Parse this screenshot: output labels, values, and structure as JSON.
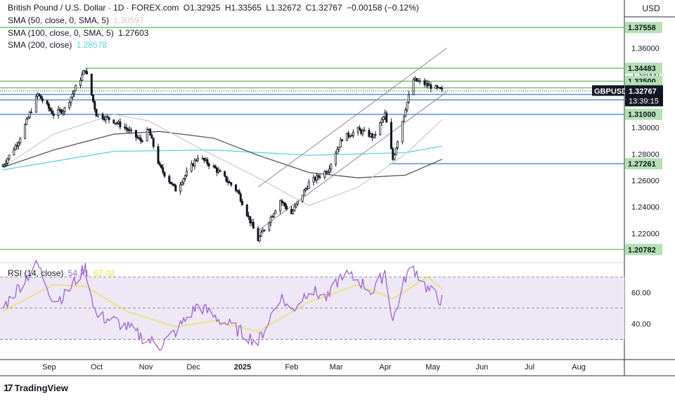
{
  "header": {
    "symbol": "British Pound / U.S. Dollar · 1D · FOREX.com",
    "open": "O1.32925",
    "high": "H1.33565",
    "low": "L1.32672",
    "close": "C1.32767",
    "change": "−0.00158 (−0.12%)"
  },
  "legends": {
    "sma50": {
      "label": "SMA (50, close, 0, SMA, 5)",
      "value": "1.30597",
      "color": "#c9c9c9"
    },
    "sma100": {
      "label": "SMA (100, close, 0, SMA, 5)",
      "value": "1.27603",
      "color": "#555555"
    },
    "sma200": {
      "label": "SMA (200, close)",
      "value": "1.28578",
      "color": "#55d3e6"
    },
    "rsi": {
      "label": "RSI (14, close)",
      "value": "54.71",
      "ma_value": "62.02",
      "color": "#9b59d0",
      "ma_color": "#e8e13a"
    }
  },
  "currency": "USD",
  "brand": {
    "logo": "17",
    "name": "TradingView"
  },
  "colors": {
    "up": "#131722",
    "down": "#131722",
    "green_level": "#7ac17a",
    "blue_level": "#5b8fd8",
    "rsi_fill": "#ede7f6",
    "axis_text": "#131722"
  },
  "chart_data": [
    {
      "type": "candlestick",
      "title": "British Pound / U.S. Dollar · 1D · FOREX.com",
      "x_tick_labels": [
        "Sep",
        "Oct",
        "Nov",
        "Dec",
        "2025",
        "Feb",
        "Mar",
        "Apr",
        "May",
        "Jun",
        "Jul",
        "Aug"
      ],
      "y_tick_labels": [
        "1.36000",
        "1.34000",
        "1.32000",
        "1.30000",
        "1.28000",
        "1.26000",
        "1.24000",
        "1.22000"
      ],
      "ylim": [
        1.2,
        1.39
      ],
      "last_price": {
        "label": "GBPUSD",
        "value": "1.32767",
        "countdown": "13:39:15"
      },
      "price_path": [
        [
          "2024-08-05",
          1.271
        ],
        [
          "2024-08-15",
          1.29
        ],
        [
          "2024-08-27",
          1.325
        ],
        [
          "2024-09-06",
          1.31
        ],
        [
          "2024-09-13",
          1.314
        ],
        [
          "2024-09-26",
          1.344
        ],
        [
          "2024-10-03",
          1.31
        ],
        [
          "2024-10-14",
          1.305
        ],
        [
          "2024-10-22",
          1.299
        ],
        [
          "2024-10-31",
          1.29
        ],
        [
          "2024-11-05",
          1.298
        ],
        [
          "2024-11-12",
          1.27
        ],
        [
          "2024-11-22",
          1.253
        ],
        [
          "2024-12-06",
          1.278
        ],
        [
          "2024-12-16",
          1.27
        ],
        [
          "2024-12-31",
          1.252
        ],
        [
          "2025-01-13",
          1.215
        ],
        [
          "2025-01-27",
          1.245
        ],
        [
          "2025-02-03",
          1.235
        ],
        [
          "2025-02-14",
          1.258
        ],
        [
          "2025-02-26",
          1.268
        ],
        [
          "2025-03-07",
          1.292
        ],
        [
          "2025-03-17",
          1.298
        ],
        [
          "2025-03-27",
          1.293
        ],
        [
          "2025-04-03",
          1.31
        ],
        [
          "2025-04-08",
          1.276
        ],
        [
          "2025-04-16",
          1.315
        ],
        [
          "2025-04-21",
          1.336
        ],
        [
          "2025-04-30",
          1.332
        ],
        [
          "2025-05-09",
          1.3277
        ]
      ],
      "sma50_path": [
        [
          "2024-08-05",
          1.27
        ],
        [
          "2024-09-06",
          1.295
        ],
        [
          "2024-10-14",
          1.31
        ],
        [
          "2024-11-05",
          1.305
        ],
        [
          "2024-12-06",
          1.285
        ],
        [
          "2025-01-13",
          1.262
        ],
        [
          "2025-02-14",
          1.241
        ],
        [
          "2025-03-17",
          1.255
        ],
        [
          "2025-04-16",
          1.28
        ],
        [
          "2025-05-09",
          1.306
        ]
      ],
      "sma100_path": [
        [
          "2024-08-05",
          1.27
        ],
        [
          "2024-09-06",
          1.283
        ],
        [
          "2024-10-14",
          1.295
        ],
        [
          "2024-11-12",
          1.297
        ],
        [
          "2024-12-16",
          1.292
        ],
        [
          "2025-01-13",
          1.279
        ],
        [
          "2025-02-14",
          1.266
        ],
        [
          "2025-03-17",
          1.262
        ],
        [
          "2025-04-16",
          1.264
        ],
        [
          "2025-05-09",
          1.276
        ]
      ],
      "sma200_path": [
        [
          "2024-08-05",
          1.268
        ],
        [
          "2024-10-14",
          1.282
        ],
        [
          "2024-12-16",
          1.283
        ],
        [
          "2025-02-14",
          1.279
        ],
        [
          "2025-04-16",
          1.281
        ],
        [
          "2025-05-09",
          1.286
        ]
      ],
      "horizontal_levels": [
        {
          "label": "1.37558",
          "value": 1.37558,
          "color": "#7ac17a"
        },
        {
          "label": "1.34483",
          "value": 1.34483,
          "color": "#7ac17a"
        },
        {
          "label": "1.33500",
          "value": 1.335,
          "color": "#7ac17a"
        },
        {
          "label": "1.33000",
          "value": 1.33,
          "color": "#7ac17a"
        },
        {
          "label": "1.32500",
          "value": 1.325,
          "color": "#5b8fd8"
        },
        {
          "label": "1.32086",
          "value": 1.32086,
          "color": "#5b8fd8"
        },
        {
          "label": "1.31000",
          "value": 1.31,
          "color": "#5b8fd8"
        },
        {
          "label": "1.27261",
          "value": 1.27261,
          "color": "#5b8fd8"
        },
        {
          "label": "1.20782",
          "value": 1.20782,
          "color": "#7ac17a"
        }
      ],
      "channel": {
        "start": "2025-01-13",
        "end": "2025-05-12",
        "upper": [
          1.255,
          1.36
        ],
        "lower": [
          1.222,
          1.327
        ]
      }
    },
    {
      "type": "line",
      "title": "RSI (14, close)",
      "y_tick_labels": [
        "60.00",
        "40.00"
      ],
      "ylim": [
        18,
        80
      ],
      "bands": [
        70,
        50,
        30
      ],
      "rsi_path": [
        [
          "2024-08-05",
          50
        ],
        [
          "2024-08-20",
          70
        ],
        [
          "2024-08-27",
          78
        ],
        [
          "2024-09-06",
          55
        ],
        [
          "2024-09-13",
          58
        ],
        [
          "2024-09-26",
          76
        ],
        [
          "2024-10-03",
          45
        ],
        [
          "2024-10-14",
          42
        ],
        [
          "2024-10-22",
          38
        ],
        [
          "2024-10-31",
          32
        ],
        [
          "2024-11-12",
          26
        ],
        [
          "2024-11-22",
          35
        ],
        [
          "2024-12-06",
          52
        ],
        [
          "2024-12-16",
          45
        ],
        [
          "2024-12-31",
          36
        ],
        [
          "2025-01-13",
          28
        ],
        [
          "2025-01-27",
          58
        ],
        [
          "2025-02-03",
          48
        ],
        [
          "2025-02-14",
          62
        ],
        [
          "2025-02-26",
          56
        ],
        [
          "2025-03-07",
          72
        ],
        [
          "2025-03-17",
          68
        ],
        [
          "2025-03-27",
          60
        ],
        [
          "2025-04-03",
          74
        ],
        [
          "2025-04-08",
          42
        ],
        [
          "2025-04-16",
          70
        ],
        [
          "2025-04-21",
          76
        ],
        [
          "2025-04-30",
          62
        ],
        [
          "2025-05-09",
          54.71
        ]
      ],
      "rsi_ma_path": [
        [
          "2024-08-05",
          48
        ],
        [
          "2024-09-06",
          65
        ],
        [
          "2024-09-26",
          64
        ],
        [
          "2024-10-22",
          48
        ],
        [
          "2024-11-22",
          38
        ],
        [
          "2024-12-16",
          42
        ],
        [
          "2025-01-13",
          35
        ],
        [
          "2025-02-14",
          54
        ],
        [
          "2025-03-17",
          65
        ],
        [
          "2025-04-08",
          56
        ],
        [
          "2025-04-30",
          70
        ],
        [
          "2025-05-09",
          62.02
        ]
      ]
    }
  ]
}
